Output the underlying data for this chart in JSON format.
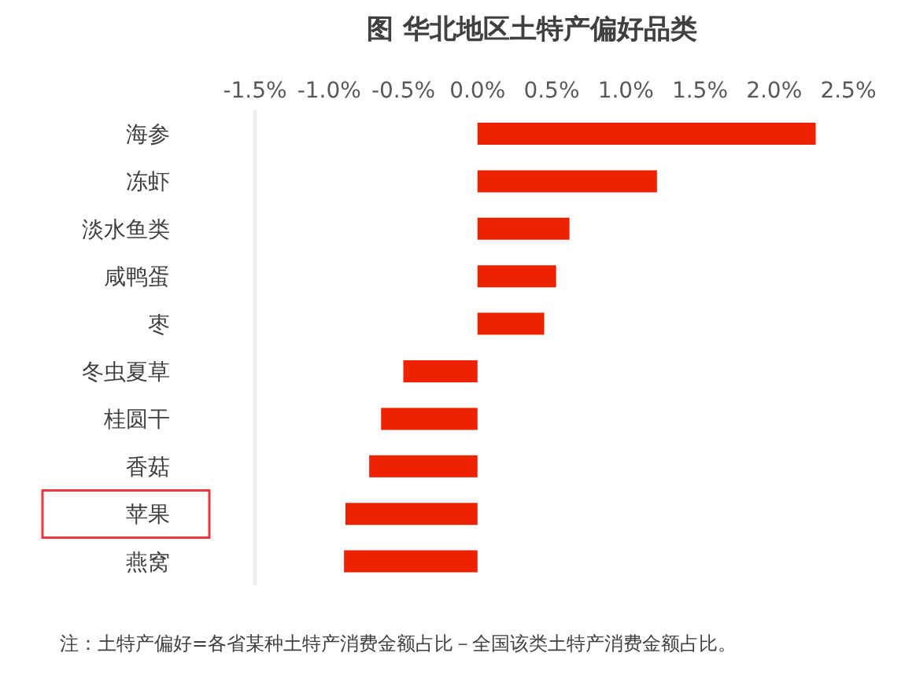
{
  "chart_data": {
    "type": "bar",
    "orientation": "horizontal",
    "title": "图 华北地区土特产偏好品类",
    "categories": [
      "海参",
      "冻虾",
      "淡水鱼类",
      "咸鸭蛋",
      "枣",
      "冬虫夏草",
      "桂圆干",
      "香菇",
      "苹果",
      "燕窝"
    ],
    "values": [
      2.28,
      1.21,
      0.62,
      0.53,
      0.45,
      -0.5,
      -0.65,
      -0.73,
      -0.89,
      -0.9
    ],
    "color": "#ee2200",
    "xlim": [
      -1.5,
      2.5
    ],
    "xticks": [
      {
        "value": -1.5,
        "label": "-1.5%"
      },
      {
        "value": -1.0,
        "label": "-1.0%"
      },
      {
        "value": -0.5,
        "label": "-0.5%"
      },
      {
        "value": 0,
        "label": "0.0%"
      },
      {
        "value": 0.5,
        "label": "0.5%"
      },
      {
        "value": 1.0,
        "label": "1.0%"
      },
      {
        "value": 1.5,
        "label": "1.5%"
      },
      {
        "value": 2.0,
        "label": "2.0%"
      },
      {
        "value": 2.5,
        "label": "2.5%"
      }
    ],
    "annotations": [
      "注：土特产偏好=各省某种土特产消费金额占比－全国该类土特产消费金额占比。"
    ]
  }
}
